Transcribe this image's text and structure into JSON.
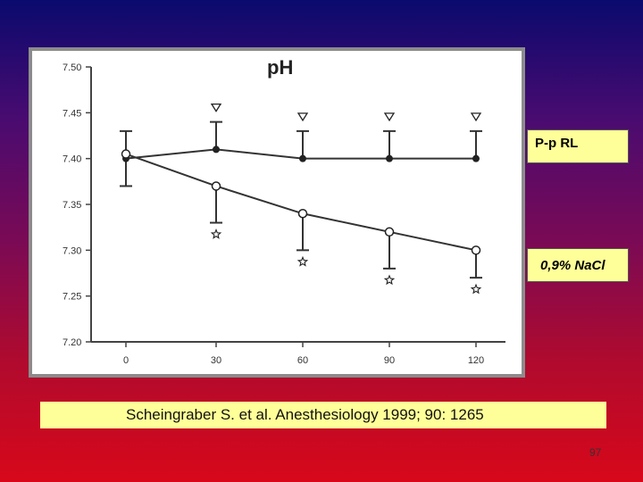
{
  "slide": {
    "legend_rl": "P-p RL",
    "legend_nacl": "0,9% NaCl",
    "citation": "Scheingraber S. et al.  Anesthesiology 1999; 90: 1265",
    "page_number": "97"
  },
  "chart_data": {
    "type": "line",
    "title": "pH",
    "xlabel": "",
    "ylabel": "",
    "x": [
      0,
      30,
      60,
      90,
      120
    ],
    "x_tick_labels": [
      "0",
      "30",
      "60",
      "90",
      "120"
    ],
    "ylim": [
      7.2,
      7.5
    ],
    "y_ticks": [
      7.2,
      7.25,
      7.3,
      7.35,
      7.4,
      7.45,
      7.5
    ],
    "y_tick_labels": [
      "7.20",
      "7.25",
      "7.30",
      "7.35",
      "7.40",
      "7.45",
      "7.50"
    ],
    "grid": false,
    "series": [
      {
        "name": "P-p RL",
        "marker": "filled-circle",
        "values": [
          7.4,
          7.41,
          7.4,
          7.4,
          7.4
        ],
        "error_upper": [
          7.43,
          7.44,
          7.43,
          7.43,
          7.43
        ],
        "error_lower": [
          7.37,
          null,
          null,
          null,
          null
        ],
        "significance_marker": "triangle-down",
        "significance_at": [
          30,
          60,
          90,
          120
        ],
        "color": "#333333"
      },
      {
        "name": "0,9% NaCl",
        "marker": "open-circle",
        "values": [
          7.405,
          7.37,
          7.34,
          7.32,
          7.3
        ],
        "error_lower": [
          null,
          7.33,
          7.3,
          7.28,
          7.27
        ],
        "significance_marker": "star",
        "significance_at": [
          30,
          60,
          90,
          120
        ],
        "color": "#333333"
      }
    ]
  }
}
